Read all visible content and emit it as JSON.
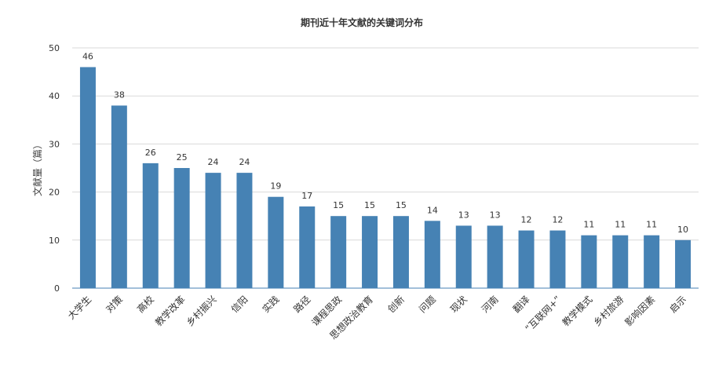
{
  "chart_data": {
    "type": "bar",
    "title": "期刊近十年文献的关键词分布",
    "xlabel": "",
    "ylabel": "文献量（篇）",
    "ylim": [
      0,
      50
    ],
    "yticks": [
      0,
      10,
      20,
      30,
      40,
      50
    ],
    "grid": true,
    "bar_color": "#4682B4",
    "categories": [
      "大学生",
      "对策",
      "高校",
      "教学改革",
      "乡村振兴",
      "信阳",
      "实践",
      "路径",
      "课程思政",
      "思想政治教育",
      "创新",
      "问题",
      "现状",
      "河南",
      "翻译",
      "“互联网+”",
      "教学模式",
      "乡村旅游",
      "影响因素",
      "启示"
    ],
    "values": [
      46,
      38,
      26,
      25,
      24,
      24,
      19,
      17,
      15,
      15,
      15,
      14,
      13,
      13,
      12,
      12,
      11,
      11,
      11,
      10
    ]
  }
}
